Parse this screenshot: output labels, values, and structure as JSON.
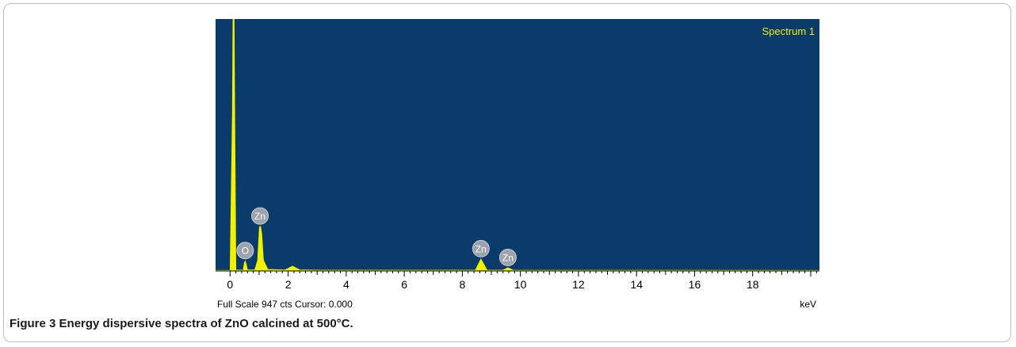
{
  "chart_data": {
    "type": "line",
    "title": "Spectrum 1",
    "xlabel": "keV",
    "xlim": [
      -0.5,
      20.3
    ],
    "ylim": [
      0,
      947
    ],
    "xticks": [
      "0",
      "2",
      "4",
      "6",
      "8",
      "10",
      "12",
      "14",
      "16",
      "18"
    ],
    "footer": "Full Scale 947 cts Cursor: 0.000",
    "series": [
      {
        "x": [
          -0.5,
          0.0,
          0.08,
          0.1,
          0.12,
          0.14,
          0.16,
          0.2,
          0.45,
          0.49,
          0.52,
          0.55,
          0.6,
          0.85,
          0.95,
          1.01,
          1.05,
          1.09,
          1.15,
          1.3,
          1.9,
          2.15,
          2.4,
          3.0,
          8.45,
          8.64,
          8.85,
          9.4,
          9.57,
          9.75,
          20.3
        ],
        "y": [
          2,
          2,
          600,
          947,
          947,
          947,
          600,
          4,
          3,
          30,
          38,
          28,
          4,
          4,
          40,
          165,
          168,
          140,
          40,
          6,
          4,
          18,
          4,
          3,
          3,
          45,
          3,
          3,
          12,
          3,
          2
        ]
      }
    ],
    "peak_labels": [
      {
        "label": "O",
        "x": 0.52,
        "y": 38
      },
      {
        "label": "Zn",
        "x": 1.03,
        "y": 168
      },
      {
        "label": "Zn",
        "x": 8.64,
        "y": 45
      },
      {
        "label": "Zn",
        "x": 9.57,
        "y": 12
      }
    ],
    "colors": {
      "background": "#0b3b6b",
      "spectrum": "#f2f200",
      "title": "#f2f200",
      "marker": "#9da3ab"
    }
  },
  "caption": {
    "label": "Figure 3",
    "text": " Energy dispersive spectra of ZnO calcined at 500°C."
  }
}
